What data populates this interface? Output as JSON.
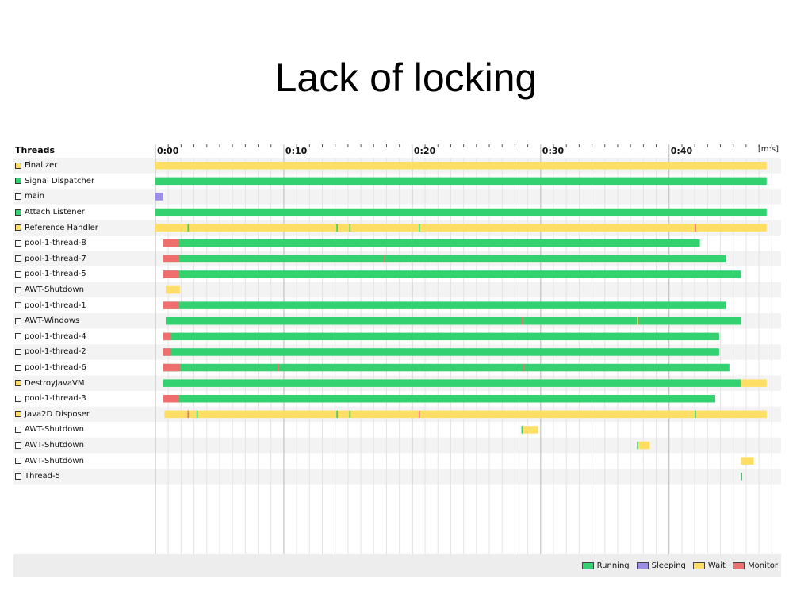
{
  "slide_title": "Lack of locking",
  "panel": {
    "threads_header": "Threads",
    "axis_unit": "[m:s]"
  },
  "colors": {
    "running": "#33d16f",
    "sleeping": "#9b8ee6",
    "wait": "#ffde66",
    "monitor": "#ef6f6f"
  },
  "chart_data": {
    "type": "timeline",
    "x_unit": "seconds",
    "x_range": [
      0,
      48.6
    ],
    "x_ticks": [
      {
        "value": 0,
        "label": "0:00"
      },
      {
        "value": 10,
        "label": "0:10"
      },
      {
        "value": 20,
        "label": "0:20"
      },
      {
        "value": 30,
        "label": "0:30"
      },
      {
        "value": 40,
        "label": "0:40"
      }
    ],
    "legend": [
      "Running",
      "Sleeping",
      "Wait",
      "Monitor"
    ],
    "threads": [
      {
        "name": "Finalizer",
        "swatch": "wait",
        "segments": [
          [
            0.0,
            47.6,
            "wait"
          ]
        ]
      },
      {
        "name": "Signal Dispatcher",
        "swatch": "running",
        "segments": [
          [
            0.0,
            47.6,
            "running"
          ]
        ]
      },
      {
        "name": "main",
        "swatch": "none",
        "segments": [
          [
            0.0,
            0.6,
            "sleeping"
          ]
        ]
      },
      {
        "name": "Attach Listener",
        "swatch": "running",
        "segments": [
          [
            0.0,
            47.6,
            "running"
          ]
        ]
      },
      {
        "name": "Reference Handler",
        "swatch": "wait",
        "segments": [
          [
            0.0,
            47.6,
            "wait"
          ],
          [
            2.5,
            2.6,
            "running"
          ],
          [
            14.1,
            14.2,
            "running"
          ],
          [
            15.1,
            15.2,
            "running"
          ],
          [
            20.5,
            20.6,
            "running"
          ],
          [
            42.0,
            42.1,
            "monitor"
          ]
        ]
      },
      {
        "name": "pool-1-thread-8",
        "swatch": "none",
        "segments": [
          [
            0.6,
            42.4,
            "running"
          ],
          [
            0.6,
            1.8,
            "monitor"
          ]
        ]
      },
      {
        "name": "pool-1-thread-7",
        "swatch": "none",
        "segments": [
          [
            0.6,
            44.4,
            "running"
          ],
          [
            0.6,
            1.8,
            "monitor"
          ],
          [
            17.8,
            17.9,
            "monitor"
          ]
        ]
      },
      {
        "name": "pool-1-thread-5",
        "swatch": "none",
        "segments": [
          [
            0.6,
            45.6,
            "running"
          ],
          [
            0.6,
            1.8,
            "monitor"
          ]
        ]
      },
      {
        "name": "AWT-Shutdown",
        "swatch": "none",
        "segments": [
          [
            0.8,
            1.9,
            "wait"
          ]
        ]
      },
      {
        "name": "pool-1-thread-1",
        "swatch": "none",
        "segments": [
          [
            0.6,
            44.4,
            "running"
          ],
          [
            0.6,
            1.8,
            "monitor"
          ]
        ]
      },
      {
        "name": "AWT-Windows",
        "swatch": "none",
        "segments": [
          [
            0.8,
            45.6,
            "running"
          ],
          [
            28.5,
            28.6,
            "monitor"
          ],
          [
            37.5,
            37.6,
            "wait"
          ]
        ]
      },
      {
        "name": "pool-1-thread-4",
        "swatch": "none",
        "segments": [
          [
            0.6,
            43.9,
            "running"
          ],
          [
            0.6,
            1.2,
            "monitor"
          ]
        ]
      },
      {
        "name": "pool-1-thread-2",
        "swatch": "none",
        "segments": [
          [
            0.6,
            43.9,
            "running"
          ],
          [
            0.6,
            1.2,
            "monitor"
          ]
        ]
      },
      {
        "name": "pool-1-thread-6",
        "swatch": "none",
        "segments": [
          [
            0.6,
            44.7,
            "running"
          ],
          [
            0.6,
            1.9,
            "monitor"
          ],
          [
            9.5,
            9.6,
            "monitor"
          ],
          [
            28.6,
            28.7,
            "monitor"
          ]
        ]
      },
      {
        "name": "DestroyJavaVM",
        "swatch": "wait",
        "segments": [
          [
            0.6,
            45.6,
            "running"
          ],
          [
            45.6,
            47.6,
            "wait"
          ]
        ]
      },
      {
        "name": "pool-1-thread-3",
        "swatch": "none",
        "segments": [
          [
            0.6,
            43.6,
            "running"
          ],
          [
            0.6,
            1.8,
            "monitor"
          ]
        ]
      },
      {
        "name": "Java2D Disposer",
        "swatch": "wait",
        "segments": [
          [
            0.7,
            47.6,
            "wait"
          ],
          [
            2.5,
            2.6,
            "monitor"
          ],
          [
            3.2,
            3.3,
            "running"
          ],
          [
            14.1,
            14.2,
            "running"
          ],
          [
            15.1,
            15.2,
            "running"
          ],
          [
            20.5,
            20.6,
            "monitor"
          ],
          [
            42.0,
            42.1,
            "running"
          ]
        ]
      },
      {
        "name": "AWT-Shutdown",
        "swatch": "none",
        "segments": [
          [
            28.5,
            28.6,
            "running"
          ],
          [
            28.6,
            29.8,
            "wait"
          ]
        ]
      },
      {
        "name": "AWT-Shutdown",
        "swatch": "none",
        "segments": [
          [
            37.5,
            37.6,
            "running"
          ],
          [
            37.6,
            38.5,
            "wait"
          ]
        ]
      },
      {
        "name": "AWT-Shutdown",
        "swatch": "none",
        "segments": [
          [
            45.6,
            46.6,
            "wait"
          ]
        ]
      },
      {
        "name": "Thread-5",
        "swatch": "none",
        "segments": [
          [
            45.6,
            45.7,
            "running"
          ]
        ]
      }
    ]
  }
}
